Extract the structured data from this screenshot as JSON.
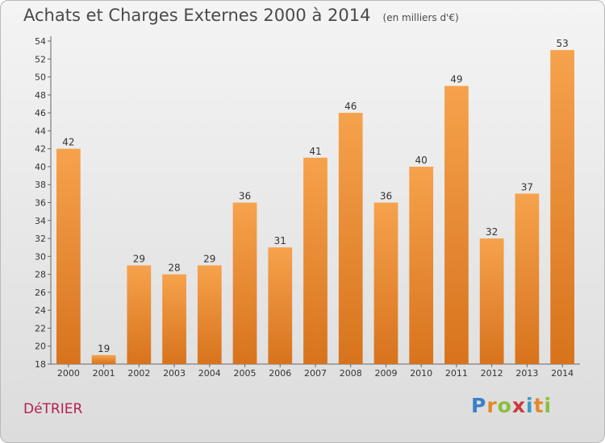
{
  "chart_data": {
    "type": "bar",
    "title": "Achats et Charges Externes 2000 à 2014",
    "subtitle": "(en milliers d'€)",
    "categories": [
      "2000",
      "2001",
      "2002",
      "2003",
      "2004",
      "2005",
      "2006",
      "2007",
      "2008",
      "2009",
      "2010",
      "2011",
      "2012",
      "2013",
      "2014"
    ],
    "values": [
      42,
      19,
      29,
      28,
      29,
      36,
      31,
      41,
      46,
      36,
      40,
      49,
      32,
      37,
      53
    ],
    "ylim": [
      18,
      54
    ],
    "yticks": [
      18,
      20,
      22,
      24,
      26,
      28,
      30,
      32,
      34,
      36,
      38,
      40,
      42,
      44,
      46,
      48,
      50,
      52,
      54
    ],
    "grid": false,
    "legend": "none",
    "bar_color": "#f0953a"
  },
  "commune": "DéTRIER",
  "logo": {
    "letters": [
      "P",
      "r",
      "o",
      "x",
      "i",
      "t",
      "i"
    ],
    "colors": [
      "#3a7fc9",
      "#e2892d",
      "#8bbd3d",
      "#c93a3a",
      "#3a9ac9",
      "#e2892d",
      "#8bbd3d"
    ]
  }
}
